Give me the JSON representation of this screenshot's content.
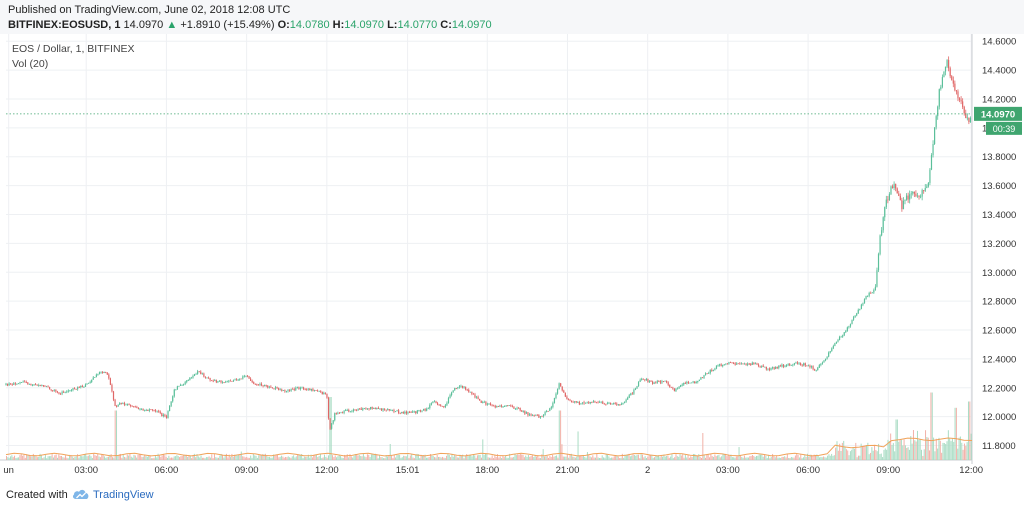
{
  "header": {
    "published": "Published on TradingView.com, June 02, 2018 12:08 UTC",
    "symbol": "BITFINEX:EOSUSD, 1",
    "last": "14.0970",
    "change_arrow": "▲",
    "change": "+1.8910 (+15.49%)",
    "o_label": "O:",
    "o_value": "14.0780",
    "h_label": "H:",
    "h_value": "14.0970",
    "l_label": "L:",
    "l_value": "14.0770",
    "c_label": "C:",
    "c_value": "14.0970"
  },
  "legend": {
    "title": "EOS / Dollar, 1, BITFINEX",
    "volume": "Vol (20)"
  },
  "footer": {
    "created_with": "Created with",
    "brand": "TradingView"
  },
  "colors": {
    "up": "#5bbf9a",
    "down": "#e06666",
    "last_price": "#3fa56f",
    "grid": "#eef0f3"
  },
  "chart_data": {
    "type": "candlestick",
    "symbol": "EOS / Dollar, 1, BITFINEX",
    "interval": "1",
    "ylim": [
      11.7,
      14.65
    ],
    "y_ticks": [
      "14.6000",
      "14.4000",
      "14.2000",
      "14.0000",
      "13.8000",
      "13.6000",
      "13.4000",
      "13.2000",
      "13.0000",
      "12.8000",
      "12.6000",
      "12.4000",
      "12.2000",
      "12.0000",
      "11.8000"
    ],
    "x_ticks": [
      {
        "label": "un",
        "t": 0.1
      },
      {
        "label": "03:00",
        "t": 3
      },
      {
        "label": "06:00",
        "t": 6
      },
      {
        "label": "09:00",
        "t": 9
      },
      {
        "label": "12:00",
        "t": 12
      },
      {
        "label": "15:01",
        "t": 15.02
      },
      {
        "label": "18:00",
        "t": 18
      },
      {
        "label": "21:00",
        "t": 21
      },
      {
        "label": "2",
        "t": 24
      },
      {
        "label": "03:00",
        "t": 27
      },
      {
        "label": "06:00",
        "t": 30
      },
      {
        "label": "09:00",
        "t": 33
      },
      {
        "label": "12:00",
        "t": 36.1
      }
    ],
    "xlim": [
      0,
      36.13
    ],
    "last_price": 14.097,
    "last_price_label": "14.0970",
    "countdown_label": "00:39",
    "price_path": [
      [
        0,
        12.22
      ],
      [
        0.5,
        12.24
      ],
      [
        1,
        12.22
      ],
      [
        1.5,
        12.21
      ],
      [
        2,
        12.16
      ],
      [
        2.5,
        12.19
      ],
      [
        3,
        12.22
      ],
      [
        3.5,
        12.31
      ],
      [
        3.8,
        12.3
      ],
      [
        4.1,
        12.06
      ],
      [
        4.3,
        12.1
      ],
      [
        5,
        12.05
      ],
      [
        5.6,
        12.04
      ],
      [
        6,
        11.99
      ],
      [
        6.3,
        12.19
      ],
      [
        6.7,
        12.24
      ],
      [
        7.2,
        12.31
      ],
      [
        7.6,
        12.26
      ],
      [
        8,
        12.24
      ],
      [
        8.5,
        12.25
      ],
      [
        9,
        12.28
      ],
      [
        9.3,
        12.23
      ],
      [
        9.8,
        12.21
      ],
      [
        10.5,
        12.18
      ],
      [
        11,
        12.2
      ],
      [
        11.6,
        12.18
      ],
      [
        12,
        12.15
      ],
      [
        12.1,
        11.9
      ],
      [
        12.3,
        12.02
      ],
      [
        12.8,
        12.04
      ],
      [
        13.5,
        12.06
      ],
      [
        14.2,
        12.05
      ],
      [
        14.8,
        12.03
      ],
      [
        15.3,
        12.03
      ],
      [
        15.7,
        12.05
      ],
      [
        16,
        12.1
      ],
      [
        16.4,
        12.06
      ],
      [
        16.7,
        12.18
      ],
      [
        17,
        12.22
      ],
      [
        17.4,
        12.16
      ],
      [
        17.8,
        12.1
      ],
      [
        18.3,
        12.07
      ],
      [
        18.7,
        12.08
      ],
      [
        19.2,
        12.05
      ],
      [
        19.6,
        12.01
      ],
      [
        20,
        12.0
      ],
      [
        20.4,
        12.06
      ],
      [
        20.7,
        12.23
      ],
      [
        21,
        12.11
      ],
      [
        21.5,
        12.09
      ],
      [
        22,
        12.1
      ],
      [
        22.6,
        12.09
      ],
      [
        23,
        12.08
      ],
      [
        23.4,
        12.16
      ],
      [
        23.8,
        12.27
      ],
      [
        24.2,
        12.23
      ],
      [
        24.6,
        12.25
      ],
      [
        25,
        12.18
      ],
      [
        25.3,
        12.23
      ],
      [
        25.8,
        12.24
      ],
      [
        26.2,
        12.3
      ],
      [
        26.6,
        12.35
      ],
      [
        27,
        12.37
      ],
      [
        27.5,
        12.36
      ],
      [
        28,
        12.37
      ],
      [
        28.5,
        12.33
      ],
      [
        29,
        12.35
      ],
      [
        29.5,
        12.37
      ],
      [
        30,
        12.36
      ],
      [
        30.3,
        12.32
      ],
      [
        30.7,
        12.42
      ],
      [
        31,
        12.51
      ],
      [
        31.4,
        12.59
      ],
      [
        31.8,
        12.71
      ],
      [
        32.2,
        12.84
      ],
      [
        32.5,
        12.88
      ],
      [
        32.7,
        13.25
      ],
      [
        32.9,
        13.49
      ],
      [
        33.2,
        13.61
      ],
      [
        33.5,
        13.46
      ],
      [
        33.8,
        13.54
      ],
      [
        34.2,
        13.54
      ],
      [
        34.5,
        13.61
      ],
      [
        34.7,
        13.95
      ],
      [
        34.9,
        14.24
      ],
      [
        35.2,
        14.47
      ],
      [
        35.4,
        14.31
      ],
      [
        35.6,
        14.21
      ],
      [
        35.8,
        14.13
      ],
      [
        36,
        14.05
      ],
      [
        36.13,
        14.097
      ]
    ],
    "volume_spikes": [
      {
        "t": 4.1,
        "v": 0.55
      },
      {
        "t": 12.1,
        "v": 0.7
      },
      {
        "t": 20.7,
        "v": 0.55
      },
      {
        "t": 33.3,
        "v": 0.45
      },
      {
        "t": 34.6,
        "v": 0.75
      },
      {
        "t": 35.5,
        "v": 0.58
      },
      {
        "t": 36.0,
        "v": 0.65
      }
    ]
  }
}
